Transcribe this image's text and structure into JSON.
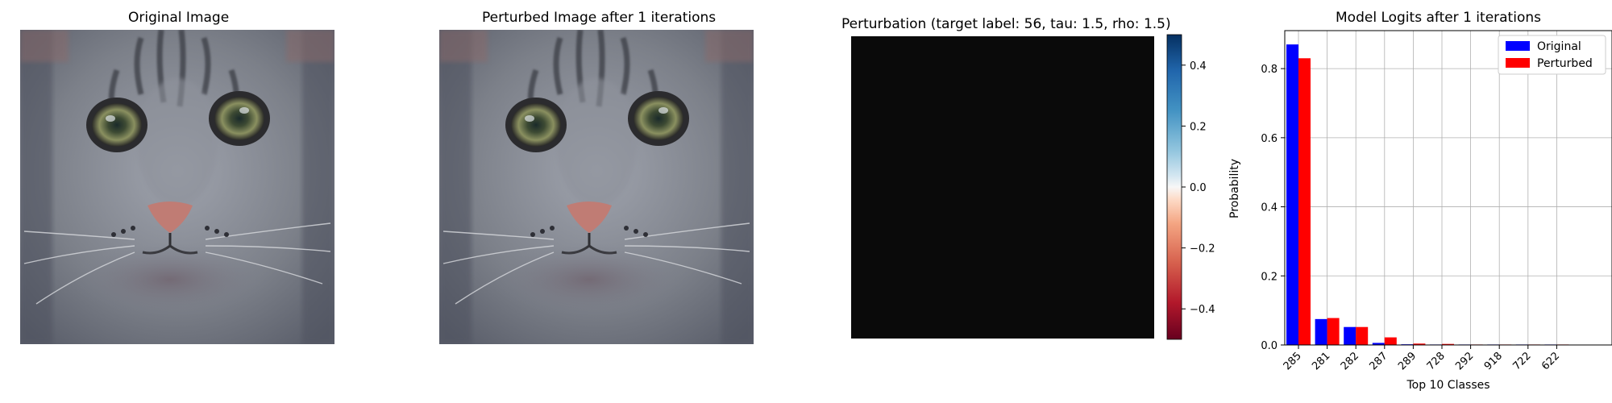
{
  "panels": {
    "original_title": "Original Image",
    "perturbed_title": "Perturbed Image after 1 iterations",
    "perturbation_title": "Perturbation (target label: 56, tau: 1.5, rho: 1.5)",
    "logits_title": "Model Logits after 1 iterations"
  },
  "colorbar": {
    "ticks": [
      "0.4",
      "0.2",
      "0.0",
      "−0.2",
      "−0.4"
    ],
    "values": [
      0.4,
      0.2,
      0.0,
      -0.2,
      -0.4
    ],
    "range": [
      -0.5,
      0.5
    ],
    "colormap": "RdBu"
  },
  "colors": {
    "original": "#0000ff",
    "perturbed": "#ff0000",
    "perturbation_fill": "#0a0a0a"
  },
  "chart_data": {
    "type": "bar",
    "title": "Model Logits after 1 iterations",
    "xlabel": "Top 10 Classes",
    "ylabel": "Probability",
    "categories": [
      "285",
      "281",
      "282",
      "287",
      "289",
      "728",
      "292",
      "918",
      "722",
      "622"
    ],
    "series": [
      {
        "name": "Original",
        "values": [
          0.87,
          0.075,
          0.052,
          0.006,
          0.002,
          0.001,
          0.0005,
          0.0005,
          0.0005,
          0.0004
        ]
      },
      {
        "name": "Perturbed",
        "values": [
          0.83,
          0.078,
          0.052,
          0.022,
          0.004,
          0.003,
          0.0006,
          0.0005,
          0.0005,
          0.0004
        ]
      }
    ],
    "ylim": [
      0,
      0.91
    ],
    "yticks": [
      0.0,
      0.2,
      0.4,
      0.6,
      0.8
    ],
    "ytick_labels": [
      "0.0",
      "0.2",
      "0.4",
      "0.6",
      "0.8"
    ],
    "grid": true,
    "legend": "top-right"
  }
}
